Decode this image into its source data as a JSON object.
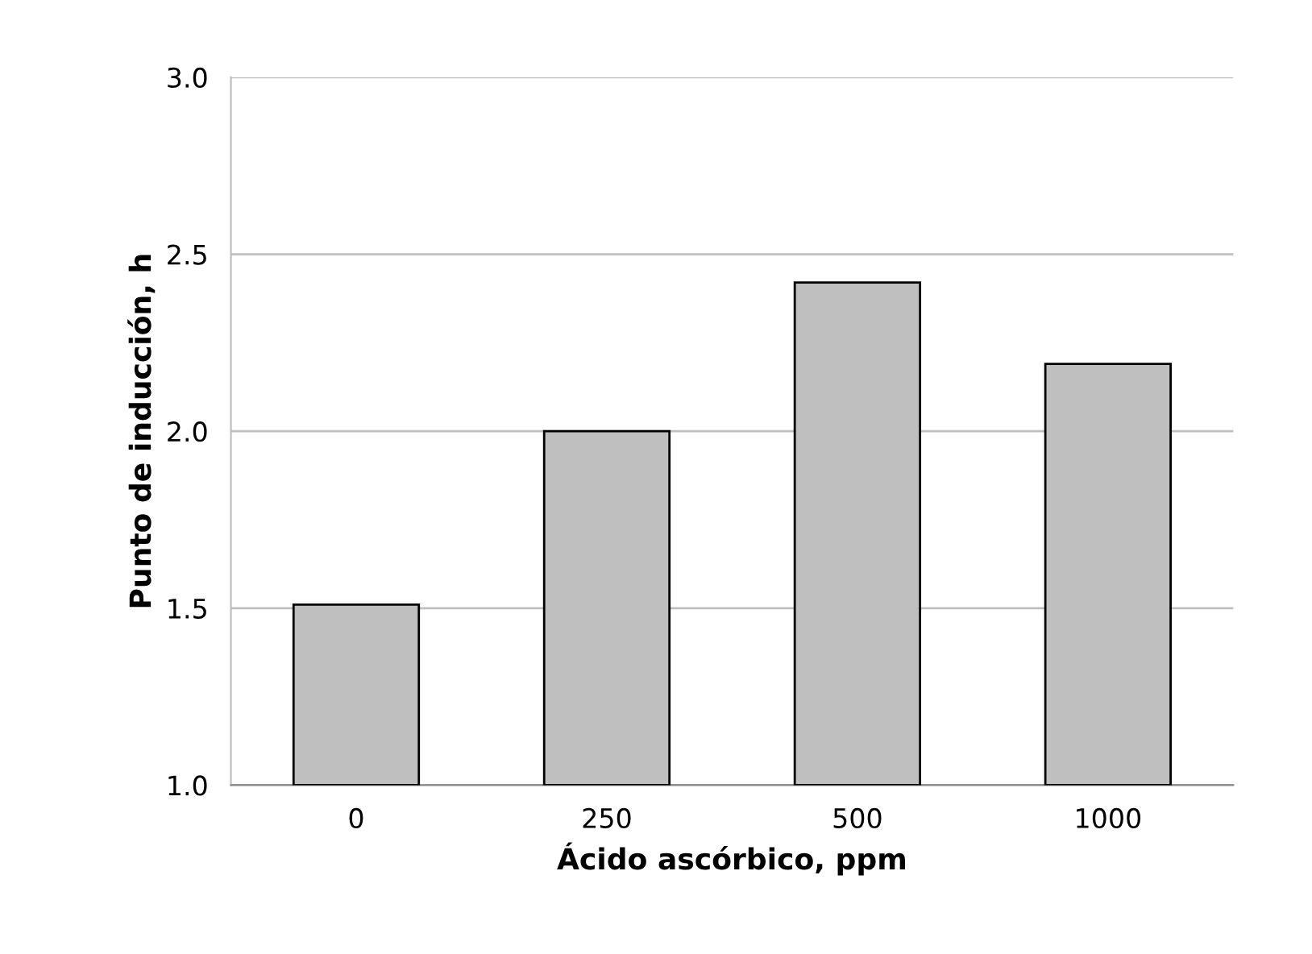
{
  "chart_data": {
    "type": "bar",
    "xlabel": "Ácido ascórbico, ppm",
    "ylabel": "Punto de inducción, h",
    "categories": [
      "0",
      "250",
      "500",
      "1000"
    ],
    "values": [
      1.51,
      2.0,
      2.42,
      2.19
    ],
    "color": "#bfbfbf",
    "ylim": [
      1.0,
      3.0
    ],
    "yticks": [
      {
        "value": 1.0,
        "label": "1.0"
      },
      {
        "value": 1.5,
        "label": "1.5"
      },
      {
        "value": 2.0,
        "label": "2.0"
      },
      {
        "value": 2.5,
        "label": "2.5"
      },
      {
        "value": 3.0,
        "label": "3.0"
      }
    ],
    "grid": "y"
  }
}
